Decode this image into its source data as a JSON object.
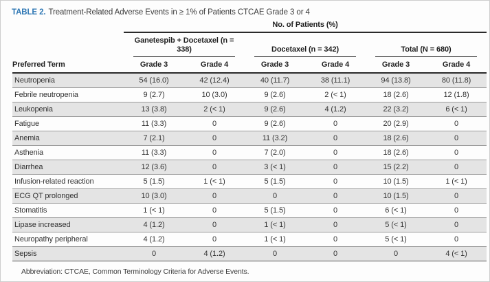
{
  "colors": {
    "accent_blue": "#2e77b4",
    "row_shade": "#e4e4e4",
    "rule_dark": "#2a2a2a",
    "rule_light": "#9a9a9a"
  },
  "table": {
    "label": "TABLE 2.",
    "title": "Treatment-Related Adverse Events in ≥ 1% of Patients CTCAE Grade 3 or 4",
    "spanner": "No. of Patients (%)",
    "row_header": "Preferred Term",
    "groups": [
      {
        "name": "Ganetespib + Docetaxel (n = 338)",
        "cols": [
          "Grade 3",
          "Grade 4"
        ]
      },
      {
        "name": "Docetaxel (n = 342)",
        "cols": [
          "Grade 3",
          "Grade 4"
        ]
      },
      {
        "name": "Total (N = 680)",
        "cols": [
          "Grade 3",
          "Grade 4"
        ]
      }
    ],
    "rows": [
      {
        "term": "Neutropenia",
        "values": [
          "54 (16.0)",
          "42 (12.4)",
          "40 (11.7)",
          "38 (11.1)",
          "94 (13.8)",
          "80 (11.8)"
        ]
      },
      {
        "term": "Febrile neutropenia",
        "values": [
          "9 (2.7)",
          "10 (3.0)",
          "9 (2.6)",
          "2 (< 1)",
          "18 (2.6)",
          "12 (1.8)"
        ]
      },
      {
        "term": "Leukopenia",
        "values": [
          "13 (3.8)",
          "2 (< 1)",
          "9 (2.6)",
          "4 (1.2)",
          "22 (3.2)",
          "6 (< 1)"
        ]
      },
      {
        "term": "Fatigue",
        "values": [
          "11 (3.3)",
          "0",
          "9 (2.6)",
          "0",
          "20 (2.9)",
          "0"
        ]
      },
      {
        "term": "Anemia",
        "values": [
          "7 (2.1)",
          "0",
          "11 (3.2)",
          "0",
          "18 (2.6)",
          "0"
        ]
      },
      {
        "term": "Asthenia",
        "values": [
          "11 (3.3)",
          "0",
          "7 (2.0)",
          "0",
          "18 (2.6)",
          "0"
        ]
      },
      {
        "term": "Diarrhea",
        "values": [
          "12 (3.6)",
          "0",
          "3 (< 1)",
          "0",
          "15 (2.2)",
          "0"
        ]
      },
      {
        "term": "Infusion-related reaction",
        "values": [
          "5 (1.5)",
          "1 (< 1)",
          "5 (1.5)",
          "0",
          "10 (1.5)",
          "1 (< 1)"
        ]
      },
      {
        "term": "ECG QT prolonged",
        "values": [
          "10 (3.0)",
          "0",
          "0",
          "0",
          "10 (1.5)",
          "0"
        ]
      },
      {
        "term": "Stomatitis",
        "values": [
          "1 (< 1)",
          "0",
          "5 (1.5)",
          "0",
          "6 (< 1)",
          "0"
        ]
      },
      {
        "term": "Lipase increased",
        "values": [
          "4 (1.2)",
          "0",
          "1 (< 1)",
          "0",
          "5 (< 1)",
          "0"
        ]
      },
      {
        "term": "Neuropathy peripheral",
        "values": [
          "4 (1.2)",
          "0",
          "1 (< 1)",
          "0",
          "5 (< 1)",
          "0"
        ]
      },
      {
        "term": "Sepsis",
        "values": [
          "0",
          "4 (1.2)",
          "0",
          "0",
          "0",
          "4 (< 1)"
        ]
      }
    ],
    "footnote": "Abbreviation: CTCAE, Common Terminology Criteria for Adverse Events."
  }
}
